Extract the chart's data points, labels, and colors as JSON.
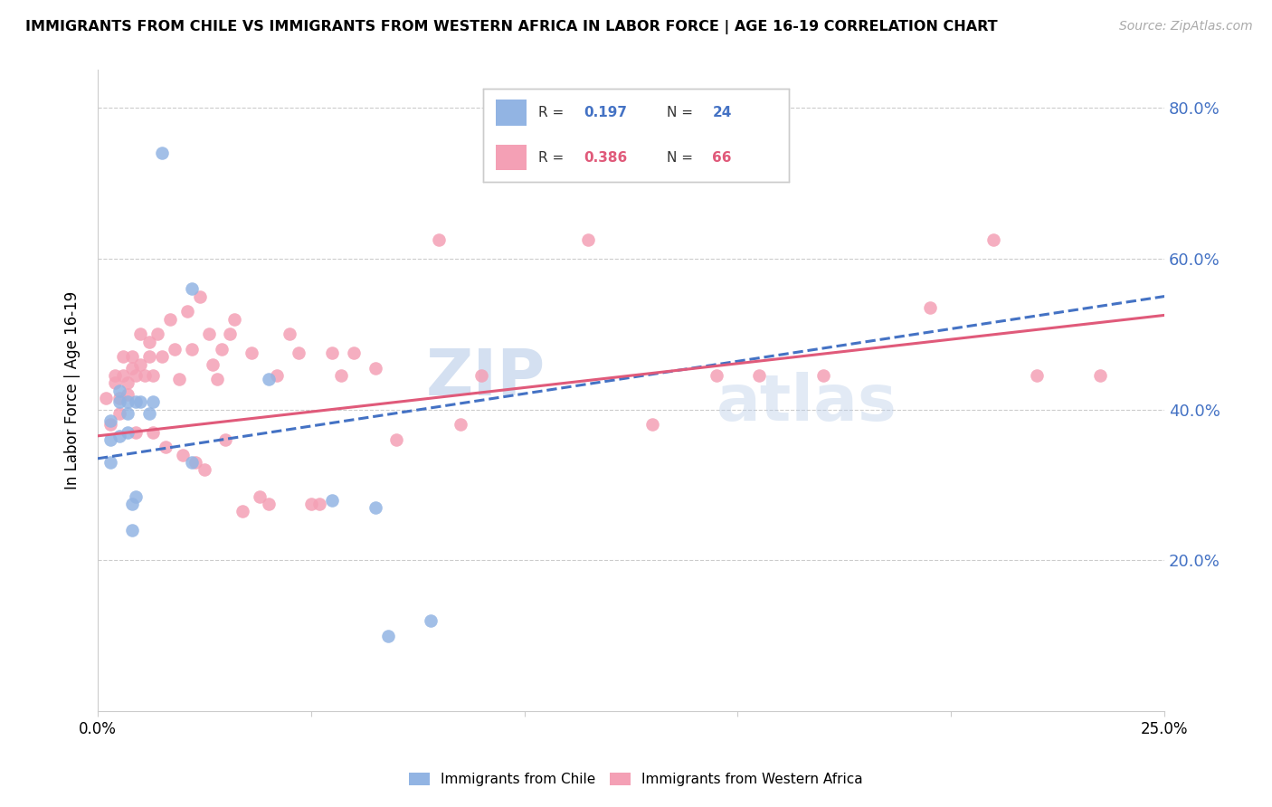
{
  "title": "IMMIGRANTS FROM CHILE VS IMMIGRANTS FROM WESTERN AFRICA IN LABOR FORCE | AGE 16-19 CORRELATION CHART",
  "source": "Source: ZipAtlas.com",
  "ylabel": "In Labor Force | Age 16-19",
  "xmin": 0.0,
  "xmax": 0.25,
  "ymin": 0.0,
  "ymax": 0.85,
  "yticks": [
    0.2,
    0.4,
    0.6,
    0.8
  ],
  "ytick_labels": [
    "20.0%",
    "40.0%",
    "60.0%",
    "80.0%"
  ],
  "xticks": [
    0.0,
    0.05,
    0.1,
    0.15,
    0.2,
    0.25
  ],
  "xtick_labels": [
    "0.0%",
    "",
    "",
    "",
    "",
    "25.0%"
  ],
  "chile_color": "#92b4e3",
  "western_africa_color": "#f4a0b5",
  "chile_line_color": "#4472c4",
  "western_africa_line_color": "#e05a7a",
  "watermark_zip": "ZIP",
  "watermark_atlas": "atlas",
  "chile_r": "0.197",
  "chile_n": "24",
  "wa_r": "0.386",
  "wa_n": "66",
  "chile_scatter_x": [
    0.003,
    0.003,
    0.003,
    0.005,
    0.005,
    0.005,
    0.007,
    0.007,
    0.007,
    0.008,
    0.008,
    0.009,
    0.009,
    0.01,
    0.012,
    0.013,
    0.015,
    0.022,
    0.022,
    0.04,
    0.055,
    0.065,
    0.068,
    0.078
  ],
  "chile_scatter_y": [
    0.385,
    0.36,
    0.33,
    0.425,
    0.41,
    0.365,
    0.41,
    0.395,
    0.37,
    0.275,
    0.24,
    0.41,
    0.285,
    0.41,
    0.395,
    0.41,
    0.74,
    0.56,
    0.33,
    0.44,
    0.28,
    0.27,
    0.1,
    0.12
  ],
  "wa_scatter_x": [
    0.002,
    0.003,
    0.004,
    0.004,
    0.005,
    0.005,
    0.006,
    0.006,
    0.007,
    0.007,
    0.008,
    0.008,
    0.009,
    0.009,
    0.01,
    0.01,
    0.011,
    0.012,
    0.012,
    0.013,
    0.013,
    0.014,
    0.015,
    0.016,
    0.017,
    0.018,
    0.019,
    0.02,
    0.021,
    0.022,
    0.023,
    0.024,
    0.025,
    0.026,
    0.027,
    0.028,
    0.029,
    0.03,
    0.031,
    0.032,
    0.034,
    0.036,
    0.038,
    0.04,
    0.042,
    0.045,
    0.047,
    0.05,
    0.052,
    0.055,
    0.057,
    0.06,
    0.065,
    0.07,
    0.08,
    0.085,
    0.09,
    0.115,
    0.13,
    0.145,
    0.155,
    0.17,
    0.195,
    0.21,
    0.22,
    0.235
  ],
  "wa_scatter_y": [
    0.415,
    0.38,
    0.445,
    0.435,
    0.415,
    0.395,
    0.47,
    0.445,
    0.435,
    0.42,
    0.47,
    0.455,
    0.445,
    0.37,
    0.5,
    0.46,
    0.445,
    0.49,
    0.47,
    0.445,
    0.37,
    0.5,
    0.47,
    0.35,
    0.52,
    0.48,
    0.44,
    0.34,
    0.53,
    0.48,
    0.33,
    0.55,
    0.32,
    0.5,
    0.46,
    0.44,
    0.48,
    0.36,
    0.5,
    0.52,
    0.265,
    0.475,
    0.285,
    0.275,
    0.445,
    0.5,
    0.475,
    0.275,
    0.275,
    0.475,
    0.445,
    0.475,
    0.455,
    0.36,
    0.625,
    0.38,
    0.445,
    0.625,
    0.38,
    0.445,
    0.445,
    0.445,
    0.535,
    0.625,
    0.445,
    0.445
  ]
}
